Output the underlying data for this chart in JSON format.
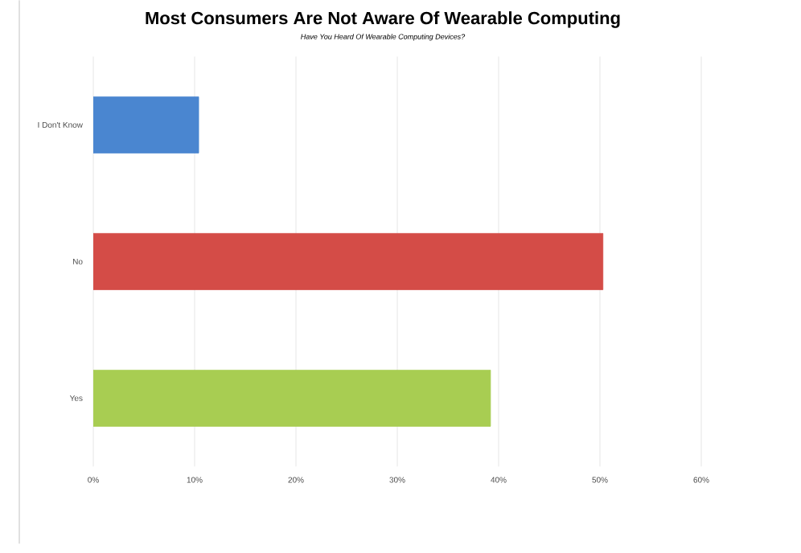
{
  "chart_data": {
    "type": "bar",
    "orientation": "horizontal",
    "title": "Most Consumers Are Not Aware Of Wearable Computing",
    "subtitle": "Have You Heard Of Wearable Computing Devices?",
    "categories": [
      "I Don't Know",
      "No",
      "Yes"
    ],
    "values": [
      10.4,
      50.3,
      39.2
    ],
    "colors": [
      "#4a86d0",
      "#d44c47",
      "#a8cd52"
    ],
    "xlim": [
      0,
      60
    ],
    "xticks": [
      {
        "value": 0,
        "label": "0%"
      },
      {
        "value": 10,
        "label": "10%"
      },
      {
        "value": 20,
        "label": "20%"
      },
      {
        "value": 30,
        "label": "30%"
      },
      {
        "value": 40,
        "label": "40%"
      },
      {
        "value": 50,
        "label": "50%"
      },
      {
        "value": 60,
        "label": "60%"
      }
    ],
    "grid": "x"
  }
}
